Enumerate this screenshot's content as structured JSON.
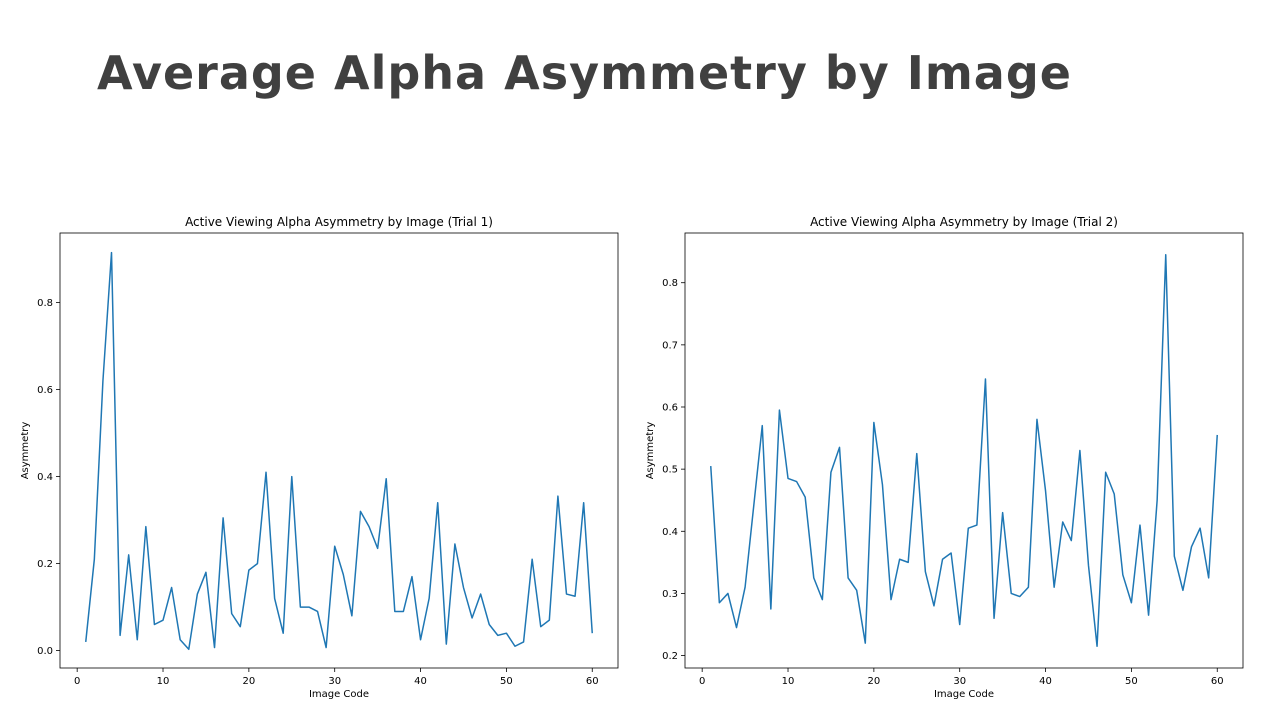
{
  "slide": {
    "title": "Average Alpha Asymmetry by Image"
  },
  "chart_data": [
    {
      "type": "line",
      "title": "Active Viewing Alpha Asymmetry by Image (Trial 1)",
      "xlabel": "Image Code",
      "ylabel": "Asymmetry",
      "xlim": [
        -2,
        63
      ],
      "ylim": [
        -0.04,
        0.96
      ],
      "xticks": [
        0,
        10,
        20,
        30,
        40,
        50,
        60
      ],
      "yticks": [
        0.0,
        0.2,
        0.4,
        0.6,
        0.8
      ],
      "ytick_format": 1,
      "line_color": "#1f77b4",
      "grid": false,
      "series": [
        {
          "x": [
            1,
            2,
            3,
            4,
            5,
            6,
            7,
            8,
            9,
            10,
            11,
            12,
            13,
            14,
            15,
            16,
            17,
            18,
            19,
            20,
            21,
            22,
            23,
            24,
            25,
            26,
            27,
            28,
            29,
            30,
            31,
            32,
            33,
            34,
            35,
            36,
            37,
            38,
            39,
            40,
            41,
            42,
            43,
            44,
            45,
            46,
            47,
            48,
            49,
            50,
            51,
            52,
            53,
            54,
            55,
            56,
            57,
            58,
            59,
            60
          ],
          "values": [
            0.02,
            0.21,
            0.62,
            0.915,
            0.035,
            0.22,
            0.025,
            0.285,
            0.06,
            0.07,
            0.145,
            0.025,
            0.003,
            0.13,
            0.18,
            0.007,
            0.305,
            0.085,
            0.055,
            0.185,
            0.2,
            0.41,
            0.12,
            0.04,
            0.4,
            0.1,
            0.1,
            0.09,
            0.007,
            0.24,
            0.175,
            0.08,
            0.32,
            0.285,
            0.235,
            0.395,
            0.09,
            0.09,
            0.17,
            0.025,
            0.12,
            0.34,
            0.015,
            0.245,
            0.145,
            0.075,
            0.13,
            0.06,
            0.035,
            0.04,
            0.01,
            0.02,
            0.21,
            0.055,
            0.07,
            0.355,
            0.13,
            0.125,
            0.34,
            0.04
          ]
        }
      ]
    },
    {
      "type": "line",
      "title": "Active Viewing Alpha Asymmetry by Image (Trial 2)",
      "xlabel": "Image Code",
      "ylabel": "Asymmetry",
      "xlim": [
        -2,
        63
      ],
      "ylim": [
        0.18,
        0.88
      ],
      "xticks": [
        0,
        10,
        20,
        30,
        40,
        50,
        60
      ],
      "yticks": [
        0.2,
        0.3,
        0.4,
        0.5,
        0.6,
        0.7,
        0.8
      ],
      "ytick_format": 1,
      "line_color": "#1f77b4",
      "grid": false,
      "series": [
        {
          "x": [
            1,
            2,
            3,
            4,
            5,
            6,
            7,
            8,
            9,
            10,
            11,
            12,
            13,
            14,
            15,
            16,
            17,
            18,
            19,
            20,
            21,
            22,
            23,
            24,
            25,
            26,
            27,
            28,
            29,
            30,
            31,
            32,
            33,
            34,
            35,
            36,
            37,
            38,
            39,
            40,
            41,
            42,
            43,
            44,
            45,
            46,
            47,
            48,
            49,
            50,
            51,
            52,
            53,
            54,
            55,
            56,
            57,
            58,
            59,
            60
          ],
          "values": [
            0.505,
            0.285,
            0.3,
            0.245,
            0.31,
            0.44,
            0.57,
            0.275,
            0.595,
            0.485,
            0.48,
            0.455,
            0.325,
            0.29,
            0.495,
            0.535,
            0.325,
            0.305,
            0.22,
            0.575,
            0.475,
            0.29,
            0.355,
            0.35,
            0.525,
            0.335,
            0.28,
            0.355,
            0.365,
            0.25,
            0.405,
            0.41,
            0.645,
            0.26,
            0.43,
            0.3,
            0.295,
            0.31,
            0.58,
            0.465,
            0.31,
            0.415,
            0.385,
            0.53,
            0.345,
            0.215,
            0.495,
            0.46,
            0.33,
            0.285,
            0.41,
            0.265,
            0.45,
            0.845,
            0.36,
            0.305,
            0.375,
            0.405,
            0.325,
            0.555
          ]
        }
      ]
    }
  ]
}
